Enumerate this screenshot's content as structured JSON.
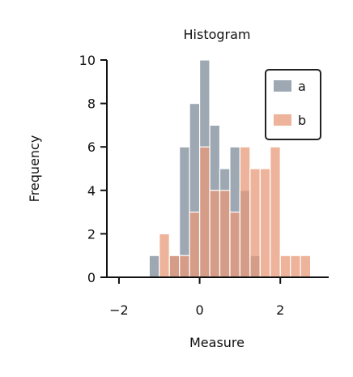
{
  "chart_data": {
    "type": "histogram",
    "title": "Histogram",
    "xlabel": "Measure",
    "ylabel": "Frequency",
    "xlim": [
      -2.3,
      3.2
    ],
    "ylim": [
      0,
      10
    ],
    "xticks": [
      -2,
      0,
      2
    ],
    "xtick_labels": [
      "−2",
      "0",
      "2"
    ],
    "yticks": [
      0,
      2,
      4,
      6,
      8,
      10
    ],
    "ytick_labels": [
      "0",
      "2",
      "4",
      "6",
      "8",
      "10"
    ],
    "grid": false,
    "legend_position": "top-right",
    "bin_width": 0.25,
    "series": [
      {
        "name": "a",
        "color": "#8c99a6",
        "bins": [
          {
            "x0": -1.25,
            "count": 1
          },
          {
            "x0": -1.0,
            "count": 0
          },
          {
            "x0": -0.75,
            "count": 1
          },
          {
            "x0": -0.5,
            "count": 6
          },
          {
            "x0": -0.25,
            "count": 8
          },
          {
            "x0": 0.0,
            "count": 10
          },
          {
            "x0": 0.25,
            "count": 7
          },
          {
            "x0": 0.5,
            "count": 5
          },
          {
            "x0": 0.75,
            "count": 6
          },
          {
            "x0": 1.0,
            "count": 4
          },
          {
            "x0": 1.25,
            "count": 1
          }
        ]
      },
      {
        "name": "b",
        "color": "#e8997a",
        "bins": [
          {
            "x0": -1.0,
            "count": 2
          },
          {
            "x0": -0.75,
            "count": 1
          },
          {
            "x0": -0.5,
            "count": 1
          },
          {
            "x0": -0.25,
            "count": 3
          },
          {
            "x0": 0.0,
            "count": 6
          },
          {
            "x0": 0.25,
            "count": 4
          },
          {
            "x0": 0.5,
            "count": 4
          },
          {
            "x0": 0.75,
            "count": 3
          },
          {
            "x0": 1.0,
            "count": 6
          },
          {
            "x0": 1.25,
            "count": 5
          },
          {
            "x0": 1.5,
            "count": 5
          },
          {
            "x0": 1.75,
            "count": 6
          },
          {
            "x0": 2.0,
            "count": 1
          },
          {
            "x0": 2.25,
            "count": 1
          },
          {
            "x0": 2.5,
            "count": 1
          }
        ]
      }
    ]
  }
}
